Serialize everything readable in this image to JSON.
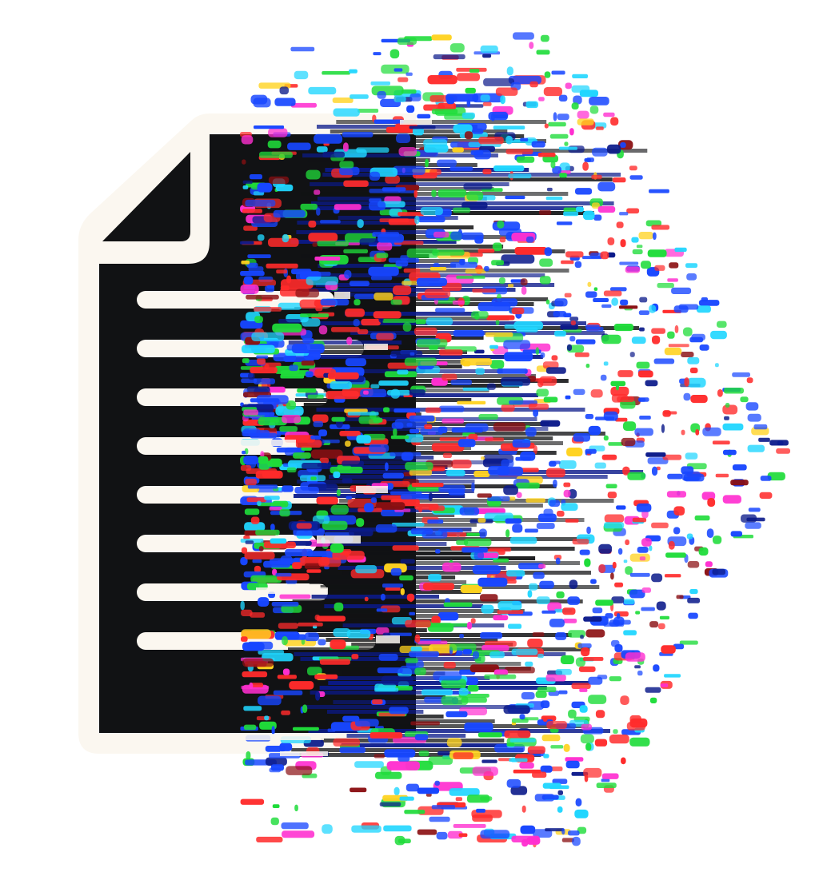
{
  "illustration": {
    "subject": "document-glitch-icon",
    "document_icon": "file-document-icon",
    "text_line_count": 8,
    "colors": {
      "background": "#ffffff",
      "page_fill": "#111214",
      "page_outline": "#fbf7f0",
      "text_lines": "#fbf7f0",
      "glitch_palette": [
        "#ff2b2b",
        "#1fdc3a",
        "#1746ff",
        "#20d6ff",
        "#ff2fd0",
        "#ffd21f",
        "#0b1a8a",
        "#8a0f12"
      ]
    }
  }
}
